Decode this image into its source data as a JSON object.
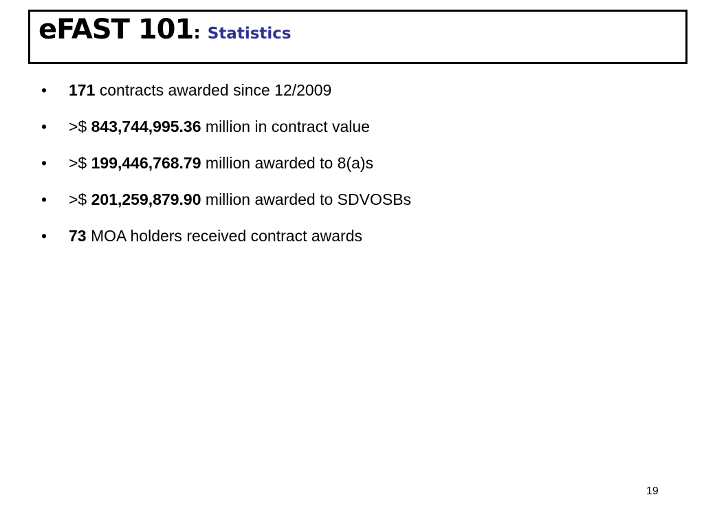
{
  "title": {
    "main": "eFAST 101",
    "colon": ":",
    "sub": "Statistics"
  },
  "bullet_glyph": "•",
  "bullets": [
    {
      "prefix": "",
      "bold": "171",
      "rest": " contracts awarded since 12/2009"
    },
    {
      "prefix": ">$ ",
      "bold": "843,744,995.36",
      "rest": " million in contract value"
    },
    {
      "prefix": ">$ ",
      "bold": "199,446,768.79",
      "rest": " million awarded to 8(a)s"
    },
    {
      "prefix": ">$ ",
      "bold": "201,259,879.90",
      "rest": " million awarded to SDVOSBs"
    },
    {
      "prefix": "",
      "bold": "73",
      "rest": " MOA holders received contract awards"
    }
  ],
  "page_number": "19",
  "colors": {
    "title_text": "#000000",
    "subtitle_accent": "#2E3192",
    "border": "#000000",
    "background": "#FFFFFF"
  }
}
